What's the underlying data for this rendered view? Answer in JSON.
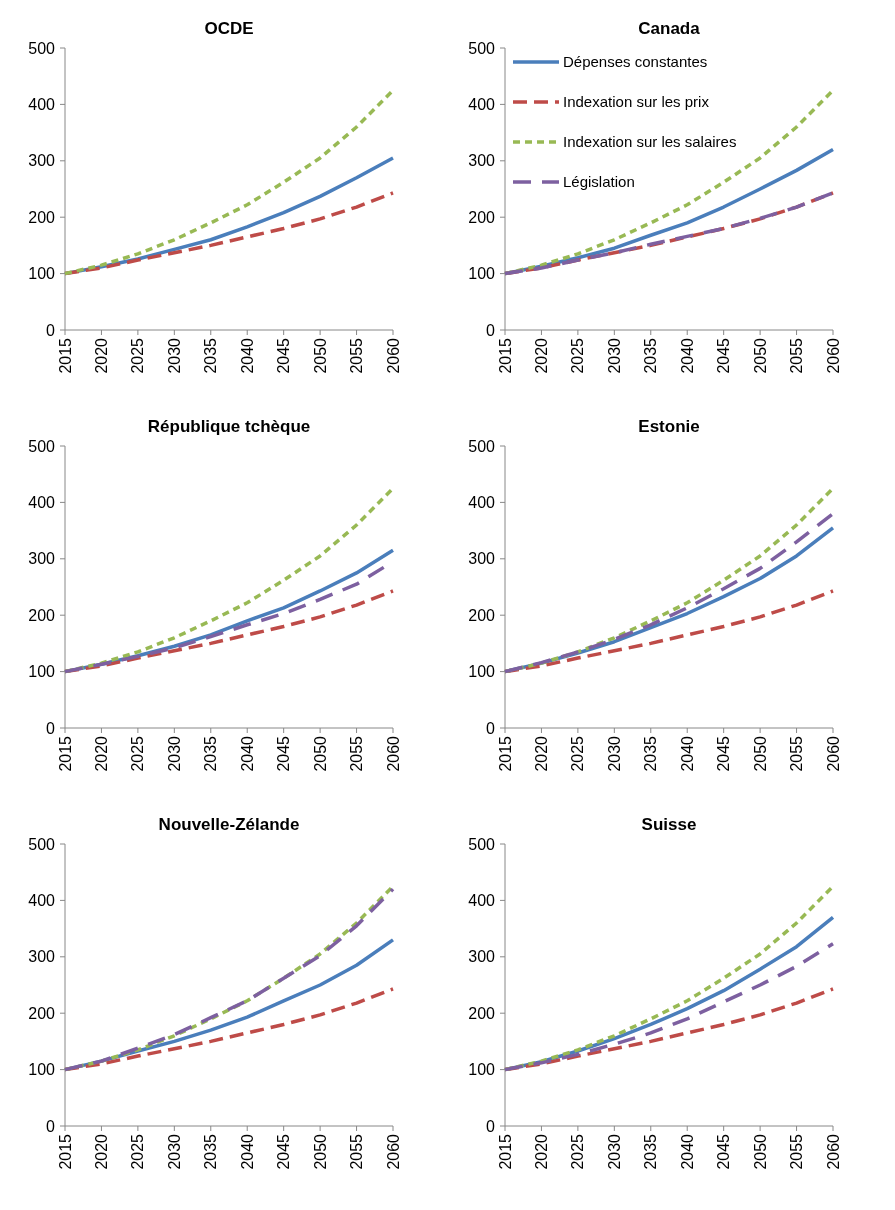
{
  "chart_data": [
    {
      "type": "line",
      "title": "OCDE",
      "x": [
        2015,
        2020,
        2025,
        2030,
        2035,
        2040,
        2045,
        2050,
        2055,
        2060
      ],
      "xlim": [
        2015,
        2060
      ],
      "xticks": [
        2015,
        2020,
        2025,
        2030,
        2035,
        2040,
        2045,
        2050,
        2055,
        2060
      ],
      "ylim": [
        0,
        500
      ],
      "yticks": [
        0,
        100,
        200,
        300,
        400,
        500
      ],
      "grid": false,
      "legend": false,
      "series": [
        {
          "color": "#4a7ebb",
          "line_style": "solid",
          "values": [
            100,
            112,
            126,
            143,
            160,
            183,
            208,
            237,
            270,
            305
          ]
        },
        {
          "color": "#be4b48",
          "line_style": "dashed",
          "values": [
            100,
            110,
            124,
            137,
            150,
            165,
            180,
            197,
            218,
            243
          ]
        },
        {
          "color": "#98b954",
          "line_style": "dashed",
          "values": [
            100,
            115,
            135,
            160,
            190,
            222,
            262,
            305,
            360,
            425
          ]
        }
      ]
    },
    {
      "type": "line",
      "title": "Canada",
      "x": [
        2015,
        2020,
        2025,
        2030,
        2035,
        2040,
        2045,
        2050,
        2055,
        2060
      ],
      "xlim": [
        2015,
        2060
      ],
      "xticks": [
        2015,
        2020,
        2025,
        2030,
        2035,
        2040,
        2045,
        2050,
        2055,
        2060
      ],
      "ylim": [
        0,
        500
      ],
      "yticks": [
        0,
        100,
        200,
        300,
        400,
        500
      ],
      "grid": false,
      "legend": "top left",
      "series": [
        {
          "name": "Dépenses constantes",
          "color": "#4a7ebb",
          "line_style": "solid",
          "values": [
            100,
            113,
            128,
            145,
            168,
            190,
            218,
            250,
            283,
            320
          ]
        },
        {
          "name": "Indexation sur les prix",
          "color": "#be4b48",
          "line_style": "dashed",
          "values": [
            100,
            110,
            124,
            137,
            150,
            165,
            180,
            197,
            218,
            243
          ]
        },
        {
          "name": "Indexation sur les salaires",
          "color": "#98b954",
          "line_style": "dashed",
          "values": [
            100,
            115,
            135,
            160,
            190,
            222,
            262,
            305,
            360,
            425
          ]
        },
        {
          "name": "Législation",
          "color": "#7d60a0",
          "line_style": "dashed",
          "values": [
            100,
            110,
            124,
            137,
            152,
            166,
            180,
            198,
            218,
            243
          ]
        }
      ]
    },
    {
      "type": "line",
      "title": "République tchèque",
      "x": [
        2015,
        2020,
        2025,
        2030,
        2035,
        2040,
        2045,
        2050,
        2055,
        2060
      ],
      "xlim": [
        2015,
        2060
      ],
      "xticks": [
        2015,
        2020,
        2025,
        2030,
        2035,
        2040,
        2045,
        2050,
        2055,
        2060
      ],
      "ylim": [
        0,
        500
      ],
      "yticks": [
        0,
        100,
        200,
        300,
        400,
        500
      ],
      "grid": false,
      "legend": false,
      "series": [
        {
          "color": "#4a7ebb",
          "line_style": "solid",
          "values": [
            100,
            113,
            128,
            145,
            165,
            190,
            213,
            243,
            275,
            315
          ]
        },
        {
          "color": "#be4b48",
          "line_style": "dashed",
          "values": [
            100,
            110,
            124,
            137,
            150,
            165,
            180,
            197,
            218,
            243
          ]
        },
        {
          "color": "#98b954",
          "line_style": "dashed",
          "values": [
            100,
            115,
            135,
            160,
            190,
            222,
            262,
            305,
            360,
            425
          ]
        },
        {
          "color": "#7d60a0",
          "line_style": "dashed",
          "values": [
            100,
            113,
            127,
            142,
            162,
            183,
            203,
            228,
            255,
            295
          ]
        }
      ]
    },
    {
      "type": "line",
      "title": "Estonie",
      "x": [
        2015,
        2020,
        2025,
        2030,
        2035,
        2040,
        2045,
        2050,
        2055,
        2060
      ],
      "xlim": [
        2015,
        2060
      ],
      "xticks": [
        2015,
        2020,
        2025,
        2030,
        2035,
        2040,
        2045,
        2050,
        2055,
        2060
      ],
      "ylim": [
        0,
        500
      ],
      "yticks": [
        0,
        100,
        200,
        300,
        400,
        500
      ],
      "grid": false,
      "legend": false,
      "series": [
        {
          "color": "#4a7ebb",
          "line_style": "solid",
          "values": [
            100,
            115,
            133,
            153,
            178,
            203,
            233,
            265,
            305,
            355
          ]
        },
        {
          "color": "#be4b48",
          "line_style": "dashed",
          "values": [
            100,
            110,
            124,
            137,
            150,
            165,
            180,
            197,
            218,
            243
          ]
        },
        {
          "color": "#98b954",
          "line_style": "dashed",
          "values": [
            100,
            115,
            135,
            160,
            190,
            222,
            262,
            305,
            360,
            425
          ]
        },
        {
          "color": "#7d60a0",
          "line_style": "dashed",
          "values": [
            100,
            116,
            135,
            157,
            183,
            213,
            247,
            283,
            330,
            380
          ]
        }
      ]
    },
    {
      "type": "line",
      "title": "Nouvelle-Zélande",
      "x": [
        2015,
        2020,
        2025,
        2030,
        2035,
        2040,
        2045,
        2050,
        2055,
        2060
      ],
      "xlim": [
        2015,
        2060
      ],
      "xticks": [
        2015,
        2020,
        2025,
        2030,
        2035,
        2040,
        2045,
        2050,
        2055,
        2060
      ],
      "ylim": [
        0,
        500
      ],
      "yticks": [
        0,
        100,
        200,
        300,
        400,
        500
      ],
      "grid": false,
      "legend": false,
      "series": [
        {
          "color": "#4a7ebb",
          "line_style": "solid",
          "values": [
            100,
            115,
            133,
            150,
            170,
            193,
            222,
            250,
            285,
            330
          ]
        },
        {
          "color": "#be4b48",
          "line_style": "dashed",
          "values": [
            100,
            110,
            124,
            137,
            150,
            165,
            180,
            197,
            218,
            243
          ]
        },
        {
          "color": "#98b954",
          "line_style": "dashed",
          "values": [
            100,
            115,
            135,
            160,
            190,
            222,
            262,
            305,
            360,
            425
          ]
        },
        {
          "color": "#7d60a0",
          "line_style": "dashed",
          "values": [
            100,
            115,
            138,
            162,
            192,
            222,
            262,
            302,
            355,
            420
          ]
        }
      ]
    },
    {
      "type": "line",
      "title": "Suisse",
      "x": [
        2015,
        2020,
        2025,
        2030,
        2035,
        2040,
        2045,
        2050,
        2055,
        2060
      ],
      "xlim": [
        2015,
        2060
      ],
      "xticks": [
        2015,
        2020,
        2025,
        2030,
        2035,
        2040,
        2045,
        2050,
        2055,
        2060
      ],
      "ylim": [
        0,
        500
      ],
      "yticks": [
        0,
        100,
        200,
        300,
        400,
        500
      ],
      "grid": false,
      "legend": false,
      "series": [
        {
          "color": "#4a7ebb",
          "line_style": "solid",
          "values": [
            100,
            114,
            133,
            155,
            180,
            208,
            240,
            278,
            318,
            370
          ]
        },
        {
          "color": "#be4b48",
          "line_style": "dashed",
          "values": [
            100,
            110,
            124,
            137,
            150,
            165,
            180,
            197,
            218,
            243
          ]
        },
        {
          "color": "#98b954",
          "line_style": "dashed",
          "values": [
            100,
            115,
            135,
            160,
            190,
            222,
            262,
            305,
            360,
            425
          ]
        },
        {
          "color": "#7d60a0",
          "line_style": "dashed",
          "values": [
            100,
            112,
            127,
            145,
            165,
            190,
            220,
            250,
            283,
            323
          ]
        }
      ]
    }
  ]
}
